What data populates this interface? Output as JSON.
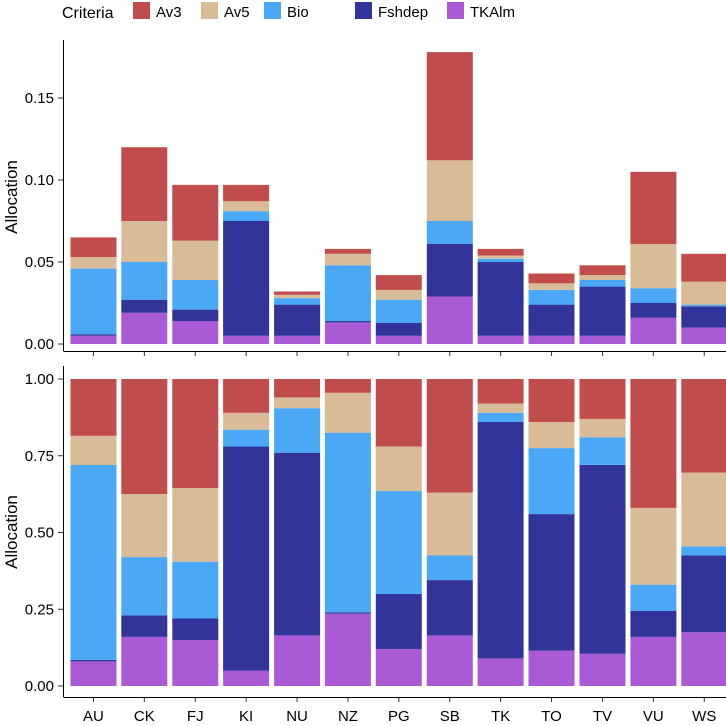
{
  "legend": {
    "title": "Criteria",
    "items": [
      {
        "name": "Av3",
        "color": "#c04c4c"
      },
      {
        "name": "Av5",
        "color": "#d9bc97"
      },
      {
        "name": "Bio",
        "color": "#4aa8f7"
      },
      {
        "name": "Fshdep",
        "color": "#33349a"
      },
      {
        "name": "TKAlm",
        "color": "#ab5ad6"
      }
    ]
  },
  "chart_data": [
    {
      "type": "bar",
      "stacked": true,
      "ylabel": "Allocation",
      "ylim": [
        0,
        0.185
      ],
      "yticks": [
        0.0,
        0.05,
        0.1,
        0.15
      ],
      "ytick_labels": [
        "0.00",
        "0.05",
        "0.10",
        "0.15"
      ],
      "categories": [
        "AU",
        "CK",
        "FJ",
        "KI",
        "NU",
        "NZ",
        "PG",
        "SB",
        "TK",
        "TO",
        "TV",
        "VU",
        "WS"
      ],
      "series": [
        {
          "name": "TKAlm",
          "values": [
            0.005,
            0.019,
            0.014,
            0.005,
            0.005,
            0.013,
            0.005,
            0.029,
            0.005,
            0.005,
            0.005,
            0.016,
            0.01
          ]
        },
        {
          "name": "Fshdep",
          "values": [
            0.001,
            0.008,
            0.007,
            0.07,
            0.019,
            0.001,
            0.008,
            0.032,
            0.045,
            0.019,
            0.03,
            0.009,
            0.013
          ]
        },
        {
          "name": "Bio",
          "values": [
            0.04,
            0.023,
            0.018,
            0.006,
            0.004,
            0.034,
            0.014,
            0.014,
            0.002,
            0.009,
            0.004,
            0.009,
            0.001
          ]
        },
        {
          "name": "Av5",
          "values": [
            0.007,
            0.025,
            0.024,
            0.006,
            0.002,
            0.007,
            0.006,
            0.037,
            0.002,
            0.004,
            0.003,
            0.027,
            0.014
          ]
        },
        {
          "name": "Av3",
          "values": [
            0.012,
            0.045,
            0.034,
            0.01,
            0.002,
            0.003,
            0.009,
            0.066,
            0.004,
            0.006,
            0.006,
            0.044,
            0.017
          ]
        }
      ]
    },
    {
      "type": "bar",
      "stacked": true,
      "ylabel": "Allocation",
      "ylim": [
        0,
        1.0
      ],
      "yticks": [
        0.0,
        0.25,
        0.5,
        0.75,
        1.0
      ],
      "ytick_labels": [
        "0.00",
        "0.25",
        "0.50",
        "0.75",
        "1.00"
      ],
      "categories": [
        "AU",
        "CK",
        "FJ",
        "KI",
        "NU",
        "NZ",
        "PG",
        "SB",
        "TK",
        "TO",
        "TV",
        "VU",
        "WS"
      ],
      "series": [
        {
          "name": "TKAlm",
          "values": [
            0.08,
            0.16,
            0.15,
            0.05,
            0.165,
            0.235,
            0.12,
            0.165,
            0.09,
            0.115,
            0.105,
            0.16,
            0.175
          ]
        },
        {
          "name": "Fshdep",
          "values": [
            0.005,
            0.07,
            0.07,
            0.73,
            0.595,
            0.005,
            0.18,
            0.18,
            0.77,
            0.445,
            0.615,
            0.085,
            0.25
          ]
        },
        {
          "name": "Bio",
          "values": [
            0.635,
            0.19,
            0.185,
            0.055,
            0.145,
            0.585,
            0.335,
            0.08,
            0.03,
            0.215,
            0.09,
            0.085,
            0.03
          ]
        },
        {
          "name": "Av5",
          "values": [
            0.095,
            0.205,
            0.24,
            0.055,
            0.035,
            0.13,
            0.145,
            0.205,
            0.03,
            0.085,
            0.06,
            0.25,
            0.24
          ]
        },
        {
          "name": "Av3",
          "values": [
            0.185,
            0.375,
            0.355,
            0.11,
            0.06,
            0.045,
            0.22,
            0.37,
            0.08,
            0.14,
            0.13,
            0.42,
            0.305
          ]
        }
      ]
    }
  ]
}
